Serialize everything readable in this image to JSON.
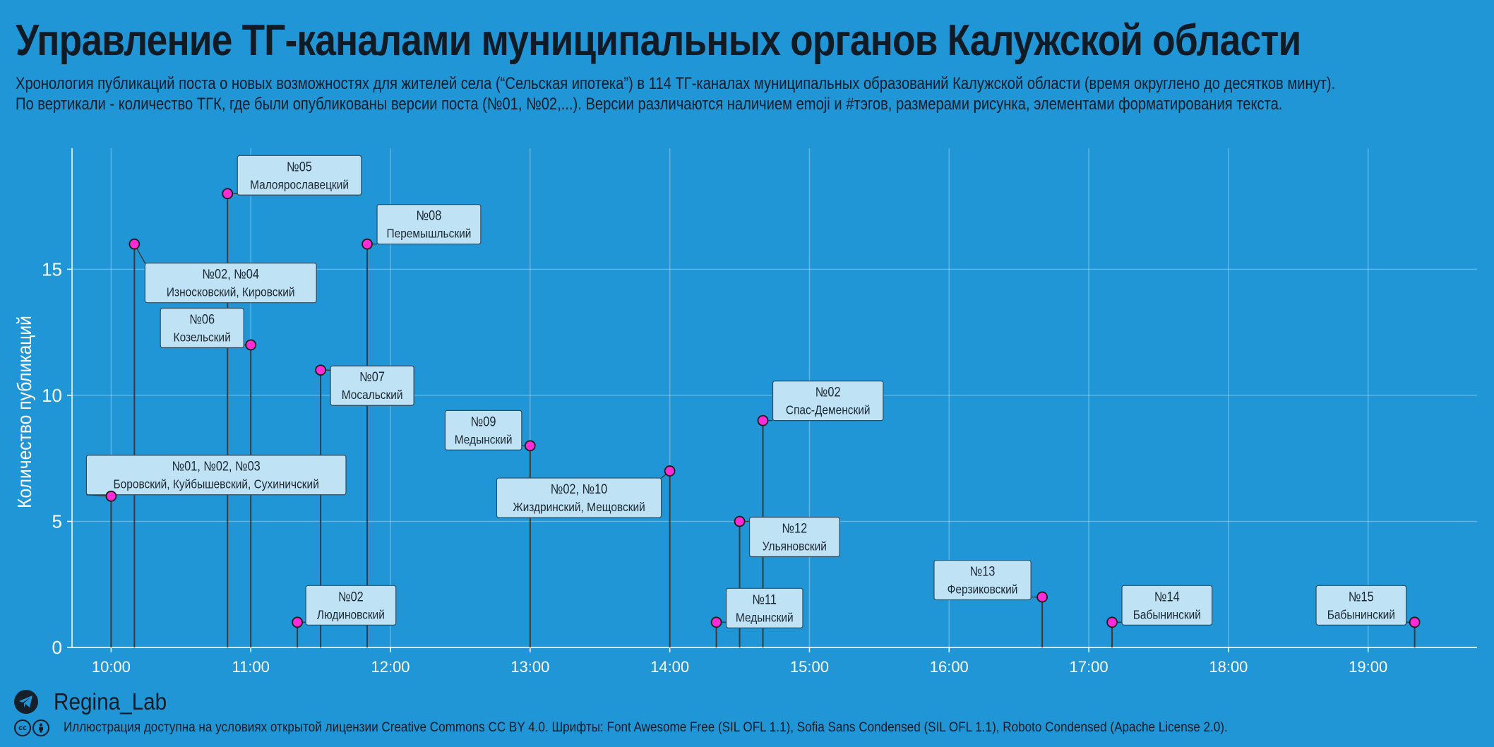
{
  "header": {
    "title": "Управление ТГ-каналами муниципальных органов Калужской области",
    "subtitle_line1": "Хронология публикаций поста о новых возможностях для жителей села (“Сельская ипотека”) в 114 ТГ-каналах муниципальных образований Калужской области (время округлено до десятков минут).",
    "subtitle_line2": "По вертикали - количество ТГК, где были опубликованы версии поста (№01, №02,...). Версии различаются наличием emoji и #тэгов, размерами рисунка, элементами форматирования текста."
  },
  "chart_data": {
    "type": "lollipop",
    "ylabel": "Количество публикаций",
    "xlabel": "",
    "ylim": [
      0,
      19.8
    ],
    "xlim_hours": [
      9.72,
      19.78
    ],
    "x_ticks": [
      "10:00",
      "11:00",
      "12:00",
      "13:00",
      "14:00",
      "15:00",
      "16:00",
      "17:00",
      "18:00",
      "19:00"
    ],
    "y_ticks": [
      0,
      5,
      10,
      15
    ],
    "grid": true,
    "colors": {
      "background": "#2196d6",
      "point_fill": "#ff2bd6",
      "stem": "#3a3a3a",
      "label_bg": "#bfe3f5",
      "label_border": "#2f4a5e"
    },
    "points": [
      {
        "time": "10:00",
        "count": 6,
        "version": "№01, №02, №03",
        "districts": "Боровский, Куйбышевский, Сухиничский"
      },
      {
        "time": "10:10",
        "count": 16,
        "version": "№02, №04",
        "districts": "Износковский, Кировский"
      },
      {
        "time": "10:50",
        "count": 18,
        "version": "№05",
        "districts": "Малоярославецкий"
      },
      {
        "time": "11:00",
        "count": 12,
        "version": "№06",
        "districts": "Козельский"
      },
      {
        "time": "11:20",
        "count": 1,
        "version": "№02",
        "districts": "Людиновский"
      },
      {
        "time": "11:30",
        "count": 11,
        "version": "№07",
        "districts": "Мосальский"
      },
      {
        "time": "11:50",
        "count": 16,
        "version": "№08",
        "districts": "Перемышльский"
      },
      {
        "time": "13:00",
        "count": 8,
        "version": "№09",
        "districts": "Медынский"
      },
      {
        "time": "14:00",
        "count": 7,
        "version": "№02, №10",
        "districts": "Жиздринский, Мещовский"
      },
      {
        "time": "14:20",
        "count": 1,
        "version": "№11",
        "districts": "Медынский"
      },
      {
        "time": "14:30",
        "count": 5,
        "version": "№12",
        "districts": "Ульяновский"
      },
      {
        "time": "14:40",
        "count": 9,
        "version": "№02",
        "districts": "Спас-Деменский"
      },
      {
        "time": "16:40",
        "count": 2,
        "version": "№13",
        "districts": "Ферзиковский"
      },
      {
        "time": "17:10",
        "count": 1,
        "version": "№14",
        "districts": "Бабынинский"
      },
      {
        "time": "19:20",
        "count": 1,
        "version": "№15",
        "districts": "Бабынинский"
      }
    ]
  },
  "footer": {
    "brand": "Regina_Lab",
    "brand_icon": "telegram-icon",
    "license_icons": [
      "cc-icon",
      "by-icon"
    ],
    "license": "Иллюстрация доступна на условиях открытой лицензии Creative Commons CC BY 4.0. Шрифты: Font Awesome Free (SIL OFL 1.1), Sofia Sans Condensed (SIL OFL 1.1), Roboto Condensed (Apache License 2.0)."
  }
}
